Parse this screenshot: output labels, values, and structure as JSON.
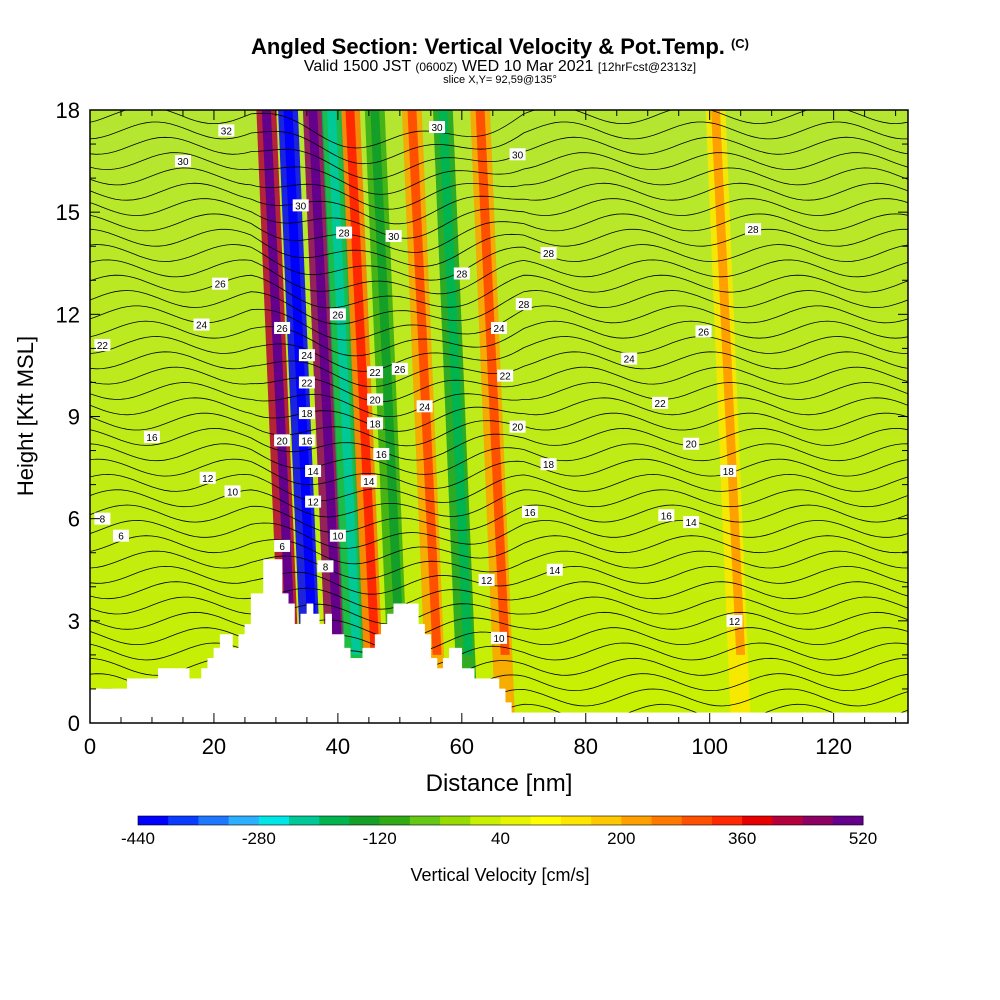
{
  "title": {
    "main": "Angled Section: Vertical Velocity & Pot.Temp.",
    "main_units": "(C)",
    "valid_prefix": "Valid 1500 JST",
    "valid_utc": "(0600Z)",
    "valid_date": "WED 10 Mar 2021",
    "forecast": "[12hrFcst@2313z]",
    "slice": "slice X,Y= 92,59@135°"
  },
  "chart_data": {
    "type": "heatmap",
    "xlabel": "Distance [nm]",
    "ylabel": "Height [Kft MSL]",
    "xlim": [
      0,
      132
    ],
    "ylim": [
      0,
      18
    ],
    "xticks": [
      0,
      20,
      40,
      60,
      80,
      100,
      120
    ],
    "yticks": [
      0,
      3,
      6,
      9,
      12,
      15,
      18
    ],
    "colorbar": {
      "label": "Vertical Velocity [cm/s]",
      "min": -440,
      "max": 520,
      "step": 40,
      "tick_values": [
        -440,
        -280,
        -120,
        40,
        200,
        360,
        520
      ],
      "colors": [
        "#0000ff",
        "#0a3cff",
        "#1e78ff",
        "#2dafff",
        "#00e6e6",
        "#00c896",
        "#00b450",
        "#14a028",
        "#32aa14",
        "#64c814",
        "#96dc00",
        "#c8f000",
        "#e6f500",
        "#ffff00",
        "#ffe600",
        "#ffc800",
        "#ffa000",
        "#ff7800",
        "#ff5000",
        "#ff2800",
        "#e60000",
        "#b4003c",
        "#8c0064",
        "#64008c"
      ]
    },
    "terrain": [
      [
        0,
        1.0
      ],
      [
        6,
        1.0
      ],
      [
        6,
        1.3
      ],
      [
        11,
        1.3
      ],
      [
        11,
        1.6
      ],
      [
        16,
        1.6
      ],
      [
        16,
        1.3
      ],
      [
        18,
        1.3
      ],
      [
        18,
        1.6
      ],
      [
        19,
        1.6
      ],
      [
        19,
        1.9
      ],
      [
        20,
        1.9
      ],
      [
        20,
        2.2
      ],
      [
        21,
        2.2
      ],
      [
        21,
        2.6
      ],
      [
        23,
        2.6
      ],
      [
        23,
        2.2
      ],
      [
        24,
        2.2
      ],
      [
        24,
        2.6
      ],
      [
        25,
        2.6
      ],
      [
        25,
        2.9
      ],
      [
        26,
        2.9
      ],
      [
        26,
        3.8
      ],
      [
        28,
        3.8
      ],
      [
        28,
        4.8
      ],
      [
        31,
        4.8
      ],
      [
        31,
        3.8
      ],
      [
        32,
        3.8
      ],
      [
        32,
        3.5
      ],
      [
        33,
        3.5
      ],
      [
        33,
        2.9
      ],
      [
        34,
        2.9
      ],
      [
        34,
        3.2
      ],
      [
        35,
        3.2
      ],
      [
        35,
        3.5
      ],
      [
        36,
        3.5
      ],
      [
        36,
        3.2
      ],
      [
        37,
        3.2
      ],
      [
        37,
        2.9
      ],
      [
        38,
        2.9
      ],
      [
        38,
        3.2
      ],
      [
        39,
        3.2
      ],
      [
        39,
        2.6
      ],
      [
        41,
        2.6
      ],
      [
        41,
        2.2
      ],
      [
        42,
        2.2
      ],
      [
        42,
        1.9
      ],
      [
        44,
        1.9
      ],
      [
        44,
        2.2
      ],
      [
        46,
        2.2
      ],
      [
        46,
        2.6
      ],
      [
        47,
        2.6
      ],
      [
        47,
        2.9
      ],
      [
        48,
        2.9
      ],
      [
        48,
        3.2
      ],
      [
        49,
        3.2
      ],
      [
        49,
        3.5
      ],
      [
        53,
        3.5
      ],
      [
        53,
        2.9
      ],
      [
        54,
        2.9
      ],
      [
        54,
        2.6
      ],
      [
        55,
        2.6
      ],
      [
        55,
        1.9
      ],
      [
        56,
        1.9
      ],
      [
        56,
        1.6
      ],
      [
        57,
        1.6
      ],
      [
        57,
        1.9
      ],
      [
        58,
        1.9
      ],
      [
        58,
        2.2
      ],
      [
        60,
        2.2
      ],
      [
        60,
        1.6
      ],
      [
        62,
        1.6
      ],
      [
        62,
        1.3
      ],
      [
        66,
        1.3
      ],
      [
        66,
        1.0
      ],
      [
        67,
        1.0
      ],
      [
        67,
        0.6
      ],
      [
        68,
        0.6
      ],
      [
        68,
        0.3
      ],
      [
        132,
        0.3
      ]
    ],
    "updrafts": [
      {
        "x": 32.5,
        "value": 420
      },
      {
        "x": 40,
        "value": 460
      },
      {
        "x": 46,
        "value": 260
      },
      {
        "x": 56,
        "value": 220
      },
      {
        "x": 67,
        "value": 200
      },
      {
        "x": 105,
        "value": 120
      }
    ],
    "downdrafts": [
      {
        "x": 36,
        "value": -440
      },
      {
        "x": 43,
        "value": -200
      },
      {
        "x": 50,
        "value": -120
      },
      {
        "x": 61,
        "value": -160
      }
    ],
    "isentrope_labels": [
      {
        "x": 22,
        "y": 17.4,
        "text": "32"
      },
      {
        "x": 15,
        "y": 16.5,
        "text": "30"
      },
      {
        "x": 34,
        "y": 15.2,
        "text": "30"
      },
      {
        "x": 56,
        "y": 17.5,
        "text": "30"
      },
      {
        "x": 69,
        "y": 16.7,
        "text": "30"
      },
      {
        "x": 41,
        "y": 14.4,
        "text": "28"
      },
      {
        "x": 49,
        "y": 14.3,
        "text": "30"
      },
      {
        "x": 74,
        "y": 13.8,
        "text": "28"
      },
      {
        "x": 107,
        "y": 14.5,
        "text": "28"
      },
      {
        "x": 21,
        "y": 12.9,
        "text": "26"
      },
      {
        "x": 60,
        "y": 13.2,
        "text": "28"
      },
      {
        "x": 70,
        "y": 12.3,
        "text": "28"
      },
      {
        "x": 18,
        "y": 11.7,
        "text": "24"
      },
      {
        "x": 31,
        "y": 11.6,
        "text": "26"
      },
      {
        "x": 40,
        "y": 12.0,
        "text": "26"
      },
      {
        "x": 66,
        "y": 11.6,
        "text": "24"
      },
      {
        "x": 99,
        "y": 11.5,
        "text": "26"
      },
      {
        "x": 2,
        "y": 11.1,
        "text": "22"
      },
      {
        "x": 35,
        "y": 10.8,
        "text": "24"
      },
      {
        "x": 87,
        "y": 10.7,
        "text": "24"
      },
      {
        "x": 50,
        "y": 10.4,
        "text": "26"
      },
      {
        "x": 46,
        "y": 10.3,
        "text": "22"
      },
      {
        "x": 35,
        "y": 10.0,
        "text": "22"
      },
      {
        "x": 67,
        "y": 10.2,
        "text": "22"
      },
      {
        "x": 46,
        "y": 9.5,
        "text": "20"
      },
      {
        "x": 54,
        "y": 9.3,
        "text": "24"
      },
      {
        "x": 92,
        "y": 9.4,
        "text": "22"
      },
      {
        "x": 35,
        "y": 9.1,
        "text": "18"
      },
      {
        "x": 46,
        "y": 8.8,
        "text": "18"
      },
      {
        "x": 69,
        "y": 8.7,
        "text": "20"
      },
      {
        "x": 10,
        "y": 8.4,
        "text": "16"
      },
      {
        "x": 31,
        "y": 8.3,
        "text": "20"
      },
      {
        "x": 35,
        "y": 8.3,
        "text": "16"
      },
      {
        "x": 97,
        "y": 8.2,
        "text": "20"
      },
      {
        "x": 47,
        "y": 7.9,
        "text": "16"
      },
      {
        "x": 74,
        "y": 7.6,
        "text": "18"
      },
      {
        "x": 36,
        "y": 7.4,
        "text": "14"
      },
      {
        "x": 103,
        "y": 7.4,
        "text": "18"
      },
      {
        "x": 19,
        "y": 7.2,
        "text": "12"
      },
      {
        "x": 45,
        "y": 7.1,
        "text": "14"
      },
      {
        "x": 23,
        "y": 6.8,
        "text": "10"
      },
      {
        "x": 36,
        "y": 6.5,
        "text": "12"
      },
      {
        "x": 71,
        "y": 6.2,
        "text": "16"
      },
      {
        "x": 93,
        "y": 6.1,
        "text": "16"
      },
      {
        "x": 97,
        "y": 5.9,
        "text": "14"
      },
      {
        "x": 2,
        "y": 6.0,
        "text": "8"
      },
      {
        "x": 5,
        "y": 5.5,
        "text": "6"
      },
      {
        "x": 40,
        "y": 5.5,
        "text": "10"
      },
      {
        "x": 31,
        "y": 5.2,
        "text": "6"
      },
      {
        "x": 38,
        "y": 4.6,
        "text": "8"
      },
      {
        "x": 75,
        "y": 4.5,
        "text": "14"
      },
      {
        "x": 64,
        "y": 4.2,
        "text": "12"
      },
      {
        "x": 104,
        "y": 3.0,
        "text": "12"
      },
      {
        "x": 66,
        "y": 2.5,
        "text": "10"
      }
    ]
  }
}
